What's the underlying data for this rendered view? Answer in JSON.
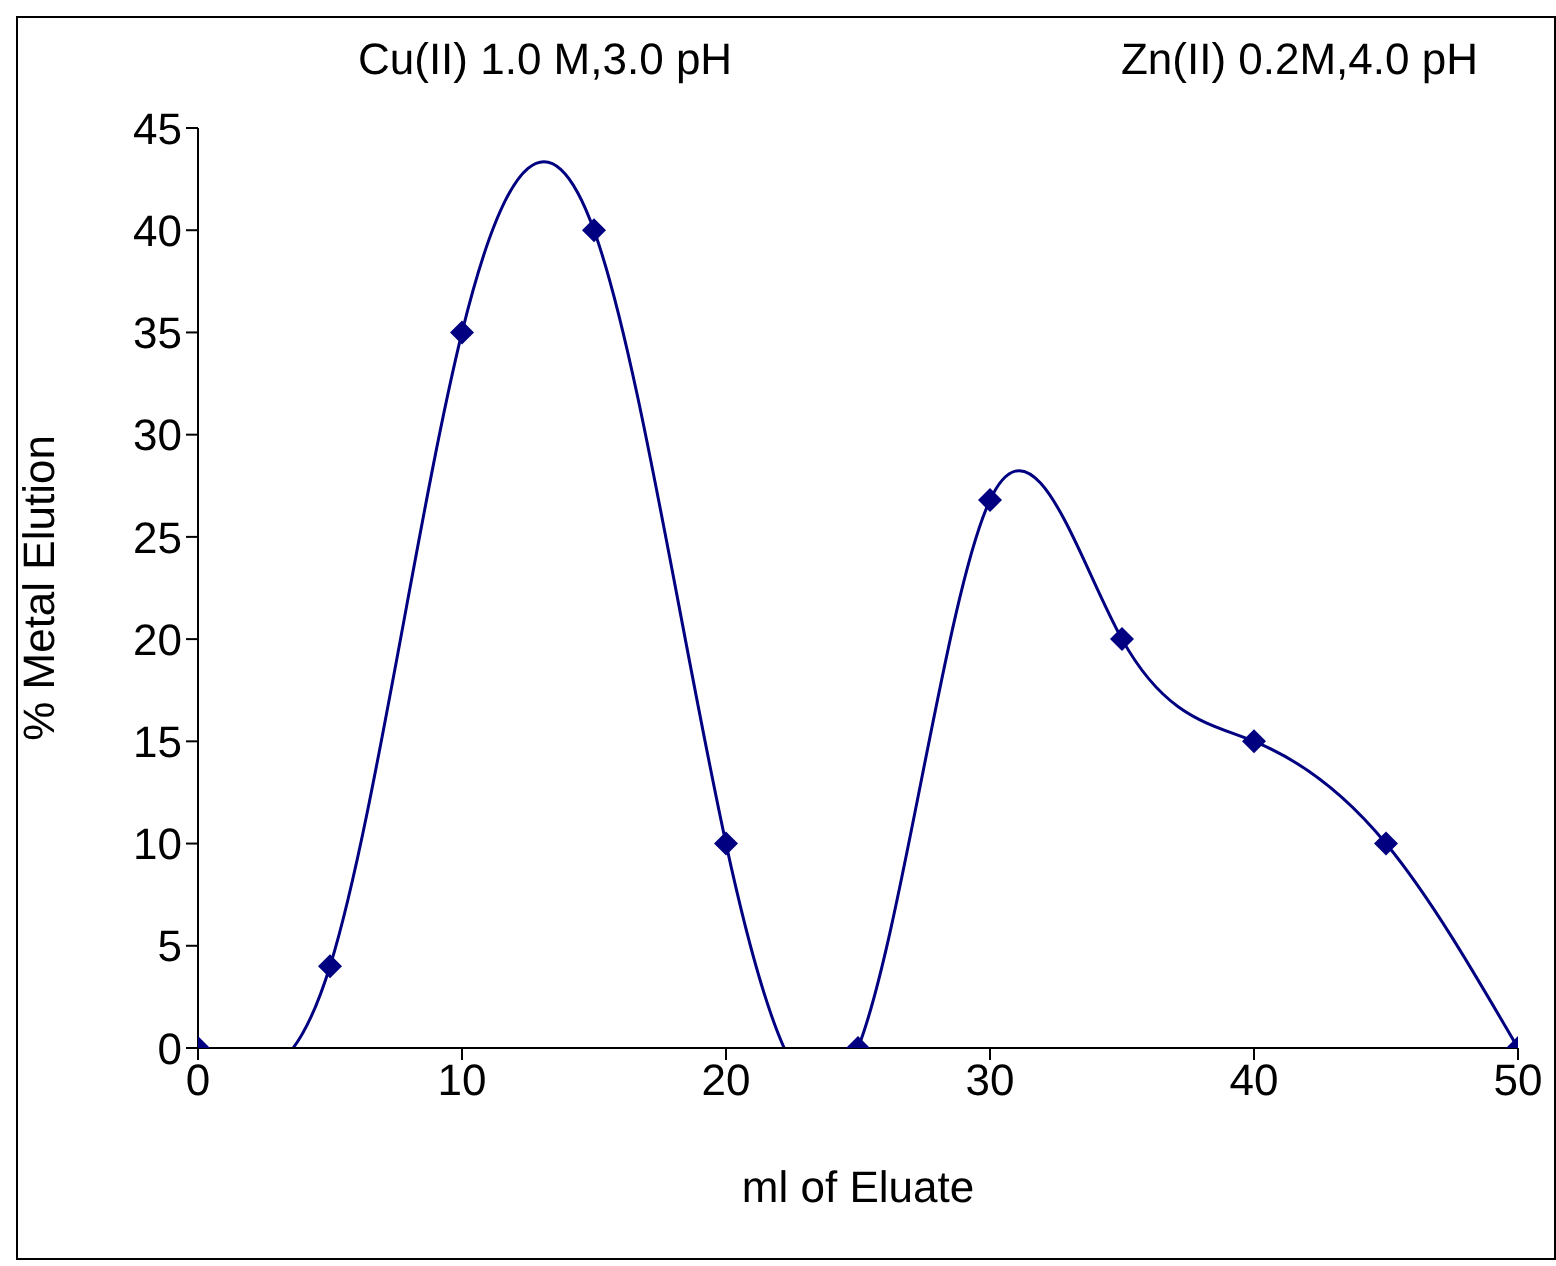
{
  "chart_data": {
    "type": "line",
    "xlabel": "ml of Eluate",
    "ylabel": "% Metal Elution",
    "annotations": [
      "Cu(II) 1.0 M,3.0 pH",
      "Zn(II) 0.2M,4.0 pH"
    ],
    "x": [
      0,
      5,
      10,
      15,
      20,
      25,
      30,
      35,
      40,
      45,
      50
    ],
    "series": [
      {
        "color": "#000080",
        "values": [
          0,
          4,
          35,
          40,
          10,
          0,
          26.8,
          20,
          15,
          10,
          0
        ]
      }
    ],
    "xlim": [
      0,
      50
    ],
    "xticks": [
      0,
      10,
      20,
      30,
      40,
      50
    ],
    "ylim": [
      0,
      45
    ],
    "yticks": [
      0,
      5,
      10,
      15,
      20,
      25,
      30,
      35,
      40,
      45
    ],
    "grid": false,
    "legend": false,
    "marker": "diamond",
    "line_style": "solid"
  }
}
